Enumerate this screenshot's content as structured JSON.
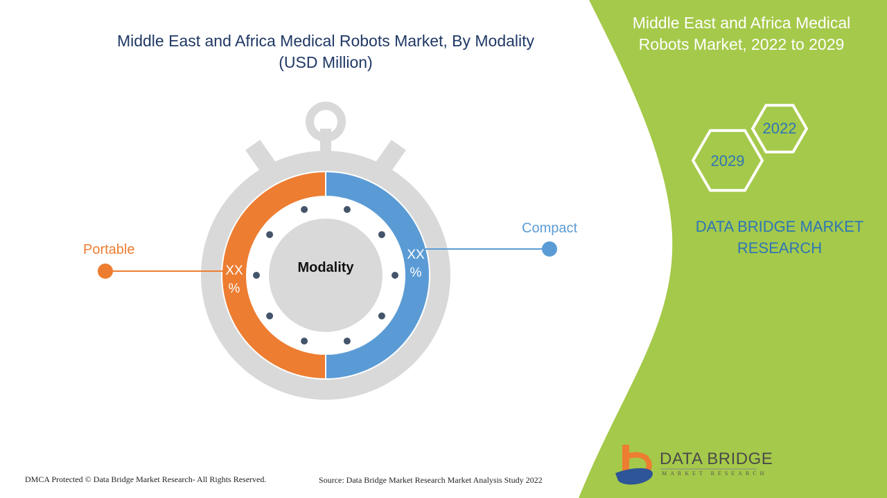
{
  "title": {
    "line1": "Middle East and Africa Medical Robots Market, By Modality",
    "line2": "(USD Million)"
  },
  "side_panel": {
    "title_line1": "Middle East and Africa Medical",
    "title_line2": "Robots Market, 2022 to 2029",
    "years": [
      "2022",
      "2029"
    ],
    "brand_line1": "DATA BRIDGE MARKET",
    "brand_line2": "RESEARCH",
    "accent_color": "#a5c94a"
  },
  "logo": {
    "name": "DATA BRIDGE",
    "tagline": "MARKET RESEARCH"
  },
  "chart_data": {
    "type": "pie",
    "title": "Middle East and Africa Medical Robots Market, By Modality (USD Million)",
    "center_label": "Modality",
    "categories": [
      "Portable",
      "Compact"
    ],
    "values": [
      50,
      50
    ],
    "data_labels": [
      "XX %",
      "XX %"
    ],
    "colors": [
      "#ed7d31",
      "#5b9bd5"
    ]
  },
  "footer": {
    "left": "DMCA Protected © Data Bridge Market Research- All Rights Reserved.",
    "right": "Source: Data Bridge Market Research Market Analysis Study 2022"
  }
}
